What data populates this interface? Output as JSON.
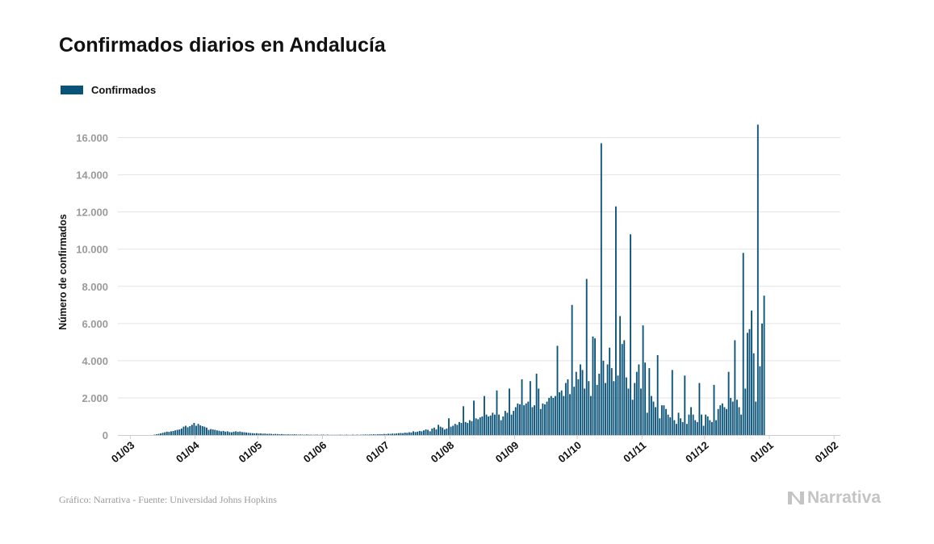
{
  "colors": {
    "bar": "#0a5378",
    "grid": "#e3e3e3",
    "axis": "#cccccc",
    "brand": "#c4c4c4"
  },
  "footer": {
    "credit": "Gráfico: Narrativa - Fuente: Universidad Johns Hopkins"
  },
  "brand": {
    "name": "Narrativa",
    "icon": "narrativa-logo-icon"
  },
  "chart_data": {
    "type": "bar",
    "title": "Confirmados diarios en Andalucía",
    "ylabel": "Número de confirmados",
    "xlabel": "",
    "ylim": [
      0,
      17500
    ],
    "grid": true,
    "legend": {
      "position": "top-left",
      "entries": [
        "Confirmados"
      ]
    },
    "x_domain": [
      "2020-02-24",
      "2021-02-04"
    ],
    "y_ticks": [
      0,
      2000,
      4000,
      6000,
      8000,
      10000,
      12000,
      14000,
      16000
    ],
    "y_tick_labels": [
      "0",
      "2.000",
      "4.000",
      "6.000",
      "8.000",
      "10.000",
      "12.000",
      "14.000",
      "16.000"
    ],
    "x_ticks": [
      {
        "date": "2020-03-01",
        "label": "01/03"
      },
      {
        "date": "2020-04-01",
        "label": "01/04"
      },
      {
        "date": "2020-05-01",
        "label": "01/05"
      },
      {
        "date": "2020-06-01",
        "label": "01/06"
      },
      {
        "date": "2020-07-01",
        "label": "01/07"
      },
      {
        "date": "2020-08-01",
        "label": "01/08"
      },
      {
        "date": "2020-09-01",
        "label": "01/09"
      },
      {
        "date": "2020-10-01",
        "label": "01/10"
      },
      {
        "date": "2020-11-01",
        "label": "01/11"
      },
      {
        "date": "2020-12-01",
        "label": "01/12"
      },
      {
        "date": "2021-01-01",
        "label": "01/01"
      },
      {
        "date": "2021-02-01",
        "label": "01/02"
      }
    ],
    "series": [
      {
        "name": "Confirmados",
        "start_date": "2020-02-25",
        "values": [
          0,
          0,
          0,
          0,
          0,
          0,
          0,
          0,
          0,
          0,
          0,
          0,
          0,
          0,
          0,
          0,
          20,
          40,
          60,
          90,
          120,
          150,
          180,
          170,
          200,
          220,
          250,
          280,
          300,
          350,
          450,
          500,
          420,
          480,
          550,
          650,
          500,
          600,
          520,
          480,
          450,
          400,
          280,
          320,
          300,
          280,
          250,
          230,
          200,
          220,
          180,
          200,
          160,
          150,
          180,
          200,
          170,
          190,
          160,
          150,
          140,
          120,
          110,
          100,
          90,
          100,
          80,
          90,
          70,
          80,
          60,
          70,
          60,
          50,
          60,
          50,
          40,
          50,
          40,
          30,
          40,
          30,
          30,
          40,
          30,
          20,
          30,
          20,
          20,
          30,
          20,
          20,
          10,
          20,
          20,
          10,
          20,
          20,
          10,
          20,
          10,
          10,
          10,
          10,
          10,
          20,
          10,
          10,
          20,
          10,
          10,
          20,
          10,
          20,
          10,
          20,
          20,
          30,
          20,
          30,
          30,
          40,
          30,
          40,
          50,
          40,
          60,
          50,
          70,
          60,
          80,
          70,
          90,
          100,
          110,
          100,
          130,
          120,
          150,
          140,
          200,
          160,
          180,
          220,
          200,
          250,
          300,
          280,
          200,
          350,
          400,
          300,
          550,
          450,
          400,
          300,
          350,
          900,
          450,
          500,
          600,
          550,
          700,
          650,
          1550,
          700,
          650,
          800,
          750,
          1850,
          900,
          850,
          950,
          1000,
          2100,
          1100,
          1000,
          1050,
          1200,
          1100,
          2400,
          1100,
          800,
          1000,
          1300,
          1200,
          2500,
          1100,
          1300,
          1500,
          1700,
          1650,
          3000,
          1600,
          1700,
          1800,
          2900,
          1500,
          1600,
          3300,
          2500,
          1400,
          1700,
          1650,
          1800,
          2000,
          2100,
          2000,
          2100,
          4800,
          2300,
          2400,
          2100,
          2800,
          3000,
          2200,
          7000,
          2600,
          3400,
          3000,
          3800,
          3500,
          2500,
          8400,
          2900,
          2100,
          5300,
          5200,
          2700,
          3300,
          15700,
          4000,
          2800,
          3800,
          4700,
          3600,
          2900,
          12300,
          3200,
          6400,
          4900,
          5100,
          3100,
          2500,
          10800,
          1900,
          2800,
          3400,
          3800,
          2500,
          5900,
          3900,
          1200,
          3600,
          2100,
          1800,
          1500,
          4300,
          900,
          1600,
          1600,
          1400,
          1100,
          950,
          3500,
          800,
          600,
          1200,
          900,
          700,
          3200,
          600,
          1100,
          1500,
          1100,
          800,
          700,
          2800,
          1100,
          500,
          1100,
          1000,
          800,
          700,
          2700,
          800,
          1400,
          1600,
          1700,
          1500,
          1400,
          3400,
          2000,
          1800,
          5100,
          1900,
          1500,
          1100,
          9800,
          2500,
          5500,
          5700,
          6700,
          4400,
          1800,
          16700,
          3700,
          6000,
          7500
        ]
      }
    ]
  }
}
